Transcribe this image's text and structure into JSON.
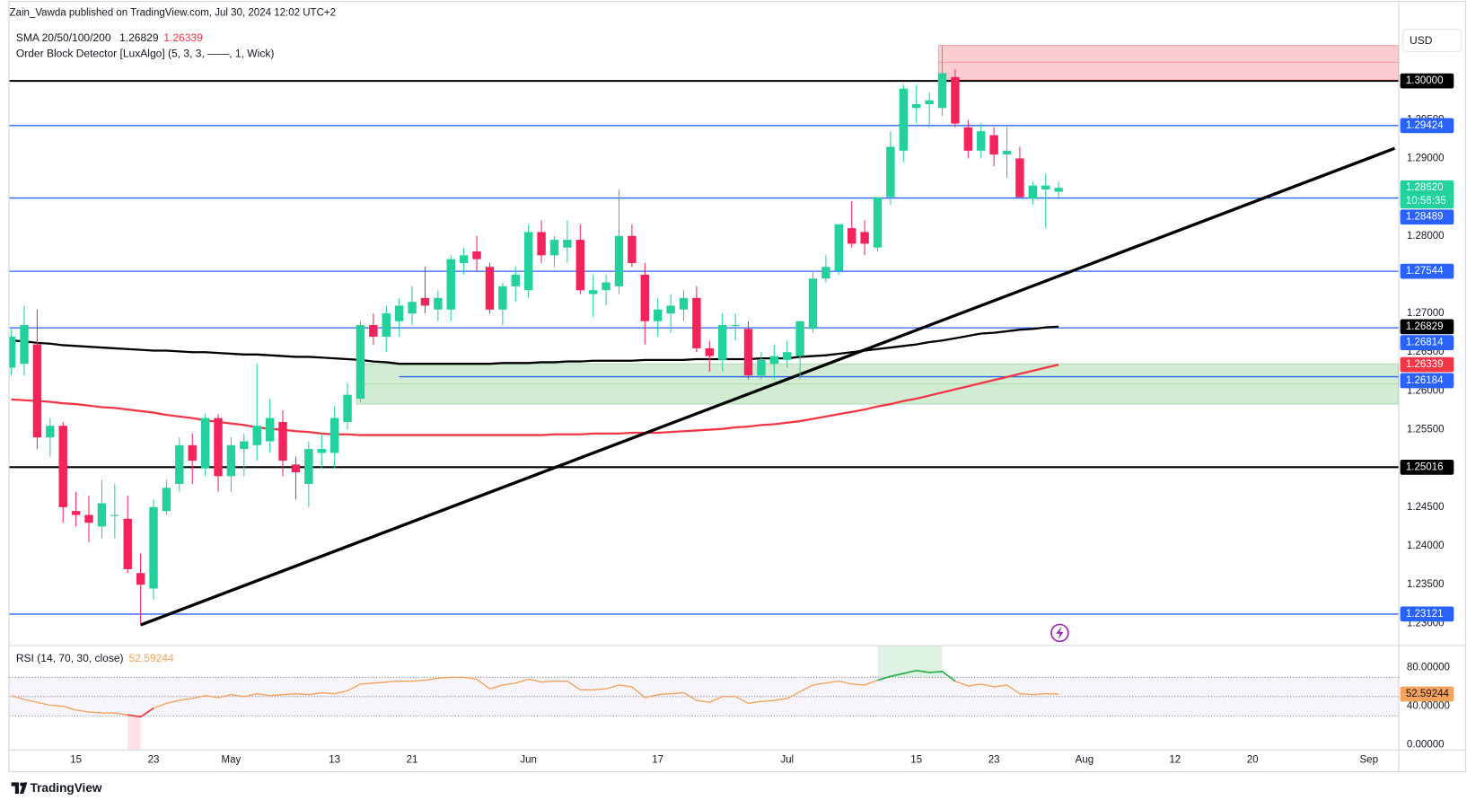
{
  "chart_data": {
    "type": "candlestick",
    "published": "Zain_Vawda published on TradingView.com, Jul 30, 2024 12:02 UTC+2",
    "indicator_labels": [
      "SMA 20/50/100/200",
      "Order Block Detector [LuxAlgo] (5, 3, 3, ——, 1, Wick)"
    ],
    "currency": "USD",
    "brand": "TradingView",
    "categories": [
      null,
      null,
      null,
      null,
      null,
      "15",
      null,
      null,
      null,
      null,
      null,
      "23",
      null,
      null,
      null,
      null,
      null,
      "May",
      null,
      null,
      null,
      null,
      null,
      null,
      null,
      "13",
      null,
      null,
      null,
      null,
      null,
      "21",
      null,
      null,
      null,
      null,
      null,
      null,
      null,
      null,
      "Jun",
      null,
      null,
      null,
      null,
      null,
      null,
      null,
      null,
      null,
      "17",
      null,
      null,
      null,
      null,
      null,
      null,
      null,
      null,
      null,
      "Jul",
      null,
      null,
      null,
      null,
      null,
      null,
      null,
      null,
      null,
      "15",
      null,
      null,
      null,
      null,
      null,
      "23",
      null,
      null,
      null,
      null,
      null,
      null,
      "Aug",
      null,
      null,
      null,
      null,
      null,
      null,
      "12",
      null,
      null,
      null,
      null,
      null,
      "20",
      null,
      null,
      null,
      null,
      null,
      null,
      null,
      null,
      "Sep",
      null,
      null
    ],
    "open": [
      1.263,
      1.2635,
      1.266,
      1.254,
      1.2555,
      1.2445,
      1.244,
      1.2425,
      1.244,
      1.2435,
      1.2365,
      1.2345,
      1.2445,
      1.248,
      1.253,
      1.25,
      1.2565,
      1.249,
      1.2525,
      1.253,
      1.2535,
      1.256,
      1.2505,
      1.248,
      1.252,
      1.252,
      1.256,
      1.259,
      1.2685,
      1.267,
      1.269,
      1.27,
      1.272,
      1.2705,
      1.2705,
      1.2765,
      1.278,
      1.276,
      1.2705,
      1.2735,
      1.273,
      1.2805,
      1.2775,
      1.2785,
      1.2795,
      1.2725,
      1.273,
      1.2735,
      1.28,
      1.275,
      1.269,
      1.27,
      1.2705,
      1.272,
      1.2655,
      1.264,
      1.2685,
      1.268,
      1.262,
      1.2635,
      1.264,
      1.2645,
      1.268,
      1.2745,
      1.2755,
      1.281,
      1.2805,
      1.2785,
      1.285,
      1.291,
      1.2965,
      1.297,
      1.2965,
      1.3005,
      1.294,
      1.291,
      1.293,
      1.2905,
      1.29,
      1.2848,
      1.286,
      1.2857,
      null,
      null,
      null,
      null,
      null,
      null,
      null,
      null,
      null,
      null,
      null,
      null,
      null,
      null,
      null,
      null,
      null,
      null,
      null,
      null,
      null,
      null,
      null,
      null,
      null,
      null
    ],
    "high": [
      1.268,
      1.271,
      1.2705,
      1.2565,
      1.256,
      1.247,
      1.2465,
      1.2485,
      1.248,
      1.2465,
      1.239,
      1.246,
      1.2485,
      1.254,
      1.2545,
      1.257,
      1.257,
      1.254,
      1.2545,
      1.2635,
      1.259,
      1.2575,
      1.2515,
      1.2535,
      1.2545,
      1.258,
      1.261,
      1.269,
      1.27,
      1.271,
      1.272,
      1.2735,
      1.276,
      1.273,
      1.2775,
      1.2785,
      1.28,
      1.2765,
      1.274,
      1.276,
      1.2815,
      1.282,
      1.28,
      1.282,
      1.2815,
      1.275,
      1.275,
      1.286,
      1.2815,
      1.2765,
      1.272,
      1.2725,
      1.273,
      1.2735,
      1.2665,
      1.27,
      1.27,
      1.269,
      1.265,
      1.266,
      1.2665,
      1.269,
      1.2755,
      1.2775,
      1.2815,
      1.2845,
      1.282,
      1.285,
      1.2935,
      1.2995,
      1.2995,
      1.2985,
      1.3045,
      1.3015,
      1.295,
      1.2945,
      1.294,
      1.294,
      1.2915,
      1.287,
      1.288,
      1.287,
      null,
      null,
      null,
      null,
      null,
      null,
      null,
      null,
      null,
      null,
      null,
      null,
      null,
      null,
      null,
      null,
      null,
      null,
      null,
      null,
      null,
      null,
      null,
      null,
      null,
      null
    ],
    "low": [
      1.262,
      1.262,
      1.2525,
      1.2515,
      1.243,
      1.2425,
      1.2405,
      1.241,
      1.241,
      1.2365,
      1.23,
      1.233,
      1.244,
      1.247,
      1.248,
      1.249,
      1.247,
      1.247,
      1.249,
      1.251,
      1.252,
      1.249,
      1.246,
      1.245,
      1.25,
      1.25,
      1.255,
      1.2585,
      1.266,
      1.265,
      1.267,
      1.2685,
      1.27,
      1.269,
      1.269,
      1.275,
      1.2755,
      1.27,
      1.2685,
      1.2715,
      1.272,
      1.2765,
      1.276,
      1.2765,
      1.2725,
      1.2695,
      1.271,
      1.2725,
      1.276,
      1.266,
      1.267,
      1.2675,
      1.269,
      1.265,
      1.2625,
      1.2625,
      1.2665,
      1.2615,
      1.2615,
      1.2615,
      1.263,
      1.2615,
      1.2675,
      1.274,
      1.275,
      1.2785,
      1.2775,
      1.278,
      1.284,
      1.2895,
      1.2945,
      1.294,
      1.2955,
      1.294,
      1.29,
      1.29,
      1.289,
      1.2875,
      1.285,
      1.284,
      1.281,
      1.285,
      null,
      null,
      null,
      null,
      null,
      null,
      null,
      null,
      null,
      null,
      null,
      null,
      null,
      null,
      null,
      null,
      null,
      null,
      null,
      null,
      null,
      null,
      null,
      null,
      null,
      null
    ],
    "close": [
      1.267,
      1.2685,
      1.254,
      1.2555,
      1.245,
      1.244,
      1.243,
      1.2455,
      1.244,
      1.237,
      1.235,
      1.245,
      1.2475,
      1.253,
      1.251,
      1.2565,
      1.249,
      1.253,
      1.2535,
      1.2555,
      1.2565,
      1.251,
      1.2495,
      1.2525,
      1.2525,
      1.2565,
      1.2595,
      1.2685,
      1.267,
      1.27,
      1.271,
      1.2715,
      1.271,
      1.272,
      1.277,
      1.2775,
      1.277,
      1.2705,
      1.2735,
      1.275,
      1.2805,
      1.2775,
      1.2795,
      1.2795,
      1.273,
      1.273,
      1.274,
      1.28,
      1.2765,
      1.269,
      1.2705,
      1.271,
      1.272,
      1.2655,
      1.2645,
      1.2685,
      1.2685,
      1.262,
      1.264,
      1.2645,
      1.265,
      1.269,
      1.2745,
      1.276,
      1.2815,
      1.279,
      1.279,
      1.285,
      1.2915,
      1.299,
      1.297,
      1.2975,
      1.301,
      1.2945,
      1.291,
      1.2935,
      1.2905,
      1.291,
      1.285,
      1.2865,
      1.2865,
      1.2862,
      null,
      null,
      null,
      null,
      null,
      null,
      null,
      null,
      null,
      null,
      null,
      null,
      null,
      null,
      null,
      null,
      null,
      null,
      null,
      null,
      null,
      null,
      null,
      null,
      null,
      null
    ],
    "up_color": "#23d19d",
    "down_color": "#f5235b",
    "last_price_label": "1.28620",
    "countdown": "10:56:35",
    "series": [
      {
        "color": "#000000",
        "values": [
          1.2665,
          1.2664,
          1.2662,
          1.2661,
          1.2659,
          1.2658,
          1.2657,
          1.2656,
          1.2655,
          1.2654,
          1.2653,
          1.2652,
          1.2652,
          1.2651,
          1.265,
          1.265,
          1.2649,
          1.2648,
          1.2647,
          1.2647,
          1.2646,
          1.2645,
          1.2644,
          1.2644,
          1.2643,
          1.2642,
          1.2641,
          1.264,
          1.2638,
          1.2637,
          1.2635,
          1.2635,
          1.2635,
          1.2635,
          1.2635,
          1.2635,
          1.2635,
          1.2635,
          1.2636,
          1.2636,
          1.2636,
          1.2637,
          1.2637,
          1.2638,
          1.2638,
          1.2639,
          1.2639,
          1.2639,
          1.2639,
          1.264,
          1.264,
          1.264,
          1.264,
          1.2641,
          1.2641,
          1.2641,
          1.2641,
          1.2641,
          1.2642,
          1.2642,
          1.2642,
          1.2644,
          1.2645,
          1.2646,
          1.2648,
          1.265,
          1.2652,
          1.2654,
          1.2656,
          1.2658,
          1.266,
          1.2663,
          1.2665,
          1.2668,
          1.2671,
          1.2674,
          1.2675,
          1.2677,
          1.2679,
          1.268,
          1.2682,
          1.26829,
          null,
          null,
          null,
          null,
          null,
          null,
          null,
          null,
          null,
          null,
          null,
          null,
          null,
          null,
          null,
          null,
          null,
          null,
          null,
          null,
          null,
          null,
          null,
          null,
          null,
          null
        ]
      },
      {
        "color": "#f23645",
        "values": [
          1.2589,
          1.2588,
          1.2587,
          1.2586,
          1.2584,
          1.2583,
          1.2581,
          1.2579,
          1.2578,
          1.2576,
          1.2574,
          1.2572,
          1.2569,
          1.2567,
          1.2565,
          1.2562,
          1.256,
          1.2558,
          1.2556,
          1.2553,
          1.2551,
          1.255,
          1.2548,
          1.2547,
          1.2545,
          1.2544,
          1.2544,
          1.2543,
          1.2543,
          1.2543,
          1.2543,
          1.2543,
          1.2543,
          1.2543,
          1.2543,
          1.2543,
          1.2543,
          1.2543,
          1.2543,
          1.2543,
          1.2543,
          1.2543,
          1.2544,
          1.2544,
          1.2544,
          1.2545,
          1.2545,
          1.2545,
          1.2546,
          1.2546,
          1.2546,
          1.2547,
          1.2548,
          1.2549,
          1.255,
          1.2551,
          1.2553,
          1.2554,
          1.2556,
          1.2557,
          1.2559,
          1.2561,
          1.2564,
          1.2567,
          1.257,
          1.2573,
          1.2576,
          1.258,
          1.2583,
          1.2587,
          1.259,
          1.2594,
          1.2598,
          1.2602,
          1.2606,
          1.261,
          1.2614,
          1.2618,
          1.2622,
          1.2626,
          1.263,
          1.26339,
          null,
          null,
          null,
          null,
          null,
          null,
          null,
          null,
          null,
          null,
          null,
          null,
          null,
          null,
          null,
          null,
          null,
          null,
          null,
          null,
          null,
          null,
          null,
          null,
          null,
          null
        ]
      }
    ],
    "ylim": [
      1.2272,
      1.3102
    ],
    "yticks": [
      {
        "value": 1.23,
        "label": "1.23000"
      },
      {
        "value": 1.235,
        "label": "1.23500"
      },
      {
        "value": 1.24,
        "label": "1.24000"
      },
      {
        "value": 1.245,
        "label": "1.24500"
      },
      {
        "value": 1.255,
        "label": "1.25500"
      },
      {
        "value": 1.26,
        "label": "1.26000"
      },
      {
        "value": 1.265,
        "label": "1.26500"
      },
      {
        "value": 1.27,
        "label": "1.27000"
      },
      {
        "value": 1.28,
        "label": "1.28000"
      },
      {
        "value": 1.29,
        "label": "1.29000"
      },
      {
        "value": 1.295,
        "label": "1.29500"
      }
    ],
    "levels": [
      {
        "value": 1.3,
        "label": "1.30000",
        "color": "#000000"
      },
      {
        "value": 1.29424,
        "color": "#2962ff"
      },
      {
        "value": 1.28489,
        "color": "#2962ff"
      },
      {
        "value": 1.27544,
        "color": "#2962ff"
      },
      {
        "value": 1.26814,
        "color": "#2962ff"
      },
      {
        "value": 1.26184,
        "color": "#2962ff",
        "start": 30
      },
      {
        "value": 1.25016,
        "color": "#000000"
      },
      {
        "value": 1.23121,
        "color": "#2962ff"
      }
    ],
    "zones": [
      {
        "top": 1.3046,
        "bottom": 1.3002,
        "start": 72,
        "color": "#f23645"
      },
      {
        "top": 1.2635,
        "bottom": 1.2583,
        "start": 27,
        "color": "#4caf50"
      }
    ],
    "trendline": {
      "x": [
        10,
        107
      ],
      "y": [
        1.2298,
        1.2913
      ]
    },
    "rsi": {
      "title": "RSI (14, 70, 30, close)",
      "color": "#f5a25d",
      "overbought_color": "#22b14c",
      "oversold_color": "#f23645",
      "values": [
        51,
        47,
        44,
        41,
        40,
        36,
        34,
        33,
        33,
        31,
        29,
        38,
        43,
        46,
        48,
        51,
        49,
        52,
        50,
        53,
        51,
        52,
        53,
        52,
        54,
        53,
        56,
        63,
        64,
        65,
        66,
        66,
        67,
        69,
        70,
        70,
        68,
        58,
        62,
        64,
        68,
        65,
        66,
        66,
        57,
        57,
        58,
        62,
        60,
        49,
        52,
        53,
        54,
        46,
        44,
        50,
        50,
        43,
        45,
        46,
        48,
        55,
        62,
        64,
        66,
        63,
        62,
        67,
        71,
        74,
        77,
        75,
        76,
        66,
        61,
        63,
        60,
        62,
        53,
        52,
        53,
        52.59244,
        null,
        null,
        null,
        null,
        null,
        null,
        null,
        null,
        null,
        null,
        null,
        null,
        null,
        null,
        null,
        null,
        null,
        null,
        null,
        null,
        null,
        null,
        null,
        null,
        null,
        null
      ],
      "ylim": [
        -4.9,
        102.4
      ],
      "yticks": [
        {
          "value": 80,
          "label": "80.00000"
        },
        {
          "value": 40,
          "label": "40.00000"
        },
        {
          "value": 0,
          "label": "0.00000"
        }
      ],
      "levels": [
        70,
        50,
        30
      ]
    }
  }
}
